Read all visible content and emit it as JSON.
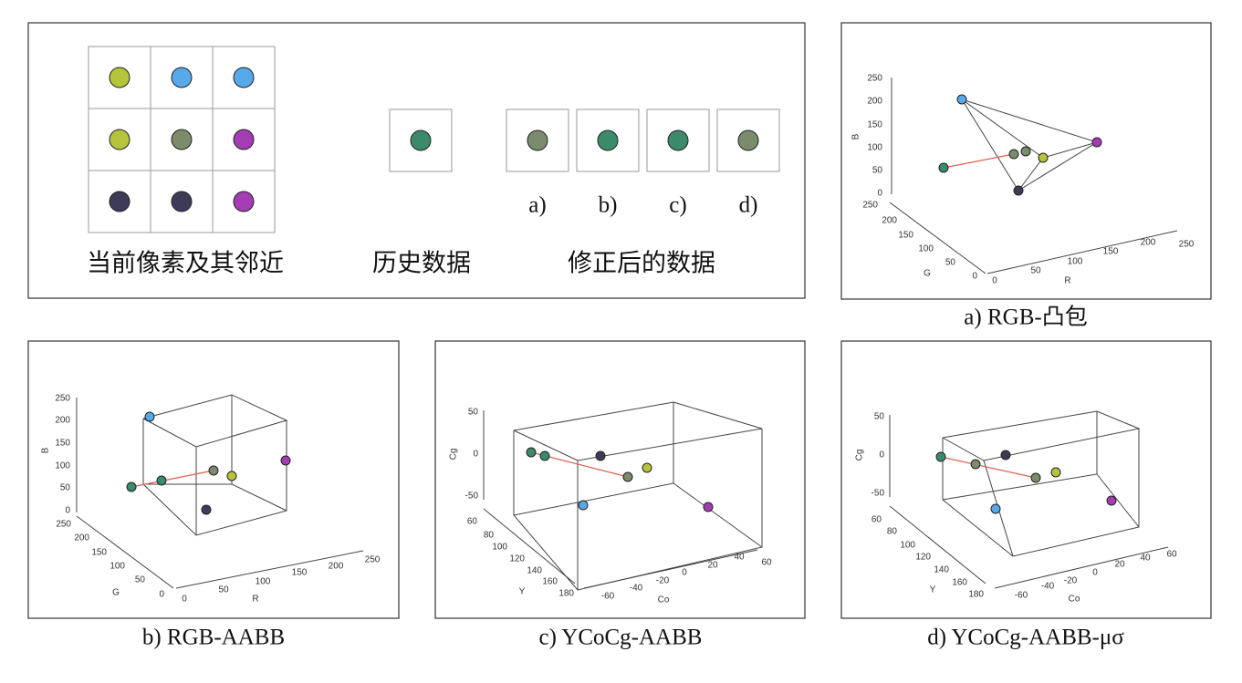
{
  "panel": {
    "labels": [
      "当前像素及其邻近",
      "历史数据",
      "修正后的数据"
    ],
    "options": [
      "a)",
      "b)",
      "c)",
      "d)"
    ]
  },
  "plots": [
    {
      "caption": "a)  RGB-凸包",
      "axes": [
        {
          "label": "B",
          "ticks": [
            "250",
            "200",
            "150",
            "100",
            "50",
            "0"
          ]
        },
        {
          "label": "G",
          "ticks": [
            "250",
            "200",
            "150",
            "100",
            "50",
            "0"
          ]
        },
        {
          "label": "R",
          "ticks": [
            "0",
            "50",
            "100",
            "150",
            "200",
            "250"
          ]
        }
      ]
    },
    {
      "caption": "b)  RGB-AABB",
      "axes": [
        {
          "label": "B",
          "ticks": [
            "250",
            "200",
            "150",
            "100",
            "50",
            "0"
          ]
        },
        {
          "label": "G",
          "ticks": [
            "250",
            "200",
            "150",
            "100",
            "50",
            "0"
          ]
        },
        {
          "label": "R",
          "ticks": [
            "0",
            "50",
            "100",
            "150",
            "200",
            "250"
          ]
        }
      ]
    },
    {
      "caption": "c)  YCoCg-AABB",
      "axes": [
        {
          "label": "Cg",
          "ticks": [
            "50",
            "0",
            "-50"
          ]
        },
        {
          "label": "Y",
          "ticks": [
            "60",
            "80",
            "100",
            "120",
            "140",
            "160",
            "180"
          ]
        },
        {
          "label": "Co",
          "ticks": [
            "-60",
            "-40",
            "-20",
            "0",
            "20",
            "40",
            "60"
          ]
        }
      ]
    },
    {
      "caption": "d)  YCoCg-AABB-μσ",
      "axes": [
        {
          "label": "Cg",
          "ticks": [
            "50",
            "0",
            "-50"
          ]
        },
        {
          "label": "Y",
          "ticks": [
            "60",
            "80",
            "100",
            "120",
            "140",
            "160",
            "180"
          ]
        },
        {
          "label": "Co",
          "ticks": [
            "-60",
            "-40",
            "-20",
            "0",
            "20",
            "40",
            "60"
          ]
        }
      ]
    }
  ]
}
